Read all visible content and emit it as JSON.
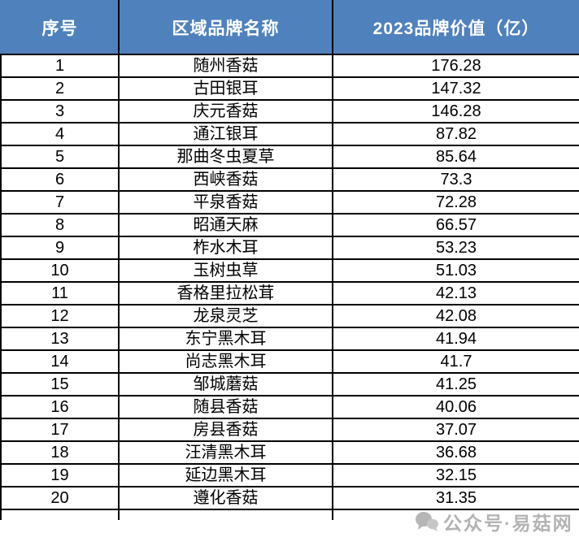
{
  "chart_data": {
    "type": "table",
    "columns": [
      "序号",
      "区域品牌名称",
      "2023品牌价值（亿）"
    ],
    "rows": [
      [
        1,
        "随州香菇",
        176.28
      ],
      [
        2,
        "古田银耳",
        147.32
      ],
      [
        3,
        "庆元香菇",
        146.28
      ],
      [
        4,
        "通江银耳",
        87.82
      ],
      [
        5,
        "那曲冬虫夏草",
        85.64
      ],
      [
        6,
        "西峡香菇",
        73.3
      ],
      [
        7,
        "平泉香菇",
        72.28
      ],
      [
        8,
        "昭通天麻",
        66.57
      ],
      [
        9,
        "柞水木耳",
        53.23
      ],
      [
        10,
        "玉树虫草",
        51.03
      ],
      [
        11,
        "香格里拉松茸",
        42.13
      ],
      [
        12,
        "龙泉灵芝",
        42.08
      ],
      [
        13,
        "东宁黑木耳",
        41.94
      ],
      [
        14,
        "尚志黑木耳",
        41.7
      ],
      [
        15,
        "邹城蘑菇",
        41.25
      ],
      [
        16,
        "随县香菇",
        40.06
      ],
      [
        17,
        "房县香菇",
        37.07
      ],
      [
        18,
        "汪清黑木耳",
        36.68
      ],
      [
        19,
        "延边黑木耳",
        32.15
      ],
      [
        20,
        "遵化香菇",
        31.35
      ]
    ],
    "value_unit": "亿",
    "value_year": "2023"
  },
  "watermark": {
    "text": "公众号·易菇网",
    "icon": "chat-bubbles-icon"
  },
  "colors": {
    "header_bg": "#4F81BD",
    "header_text": "#FFFFFF",
    "border": "#000000",
    "body_text": "#000000",
    "watermark": "#9E9E9E"
  }
}
